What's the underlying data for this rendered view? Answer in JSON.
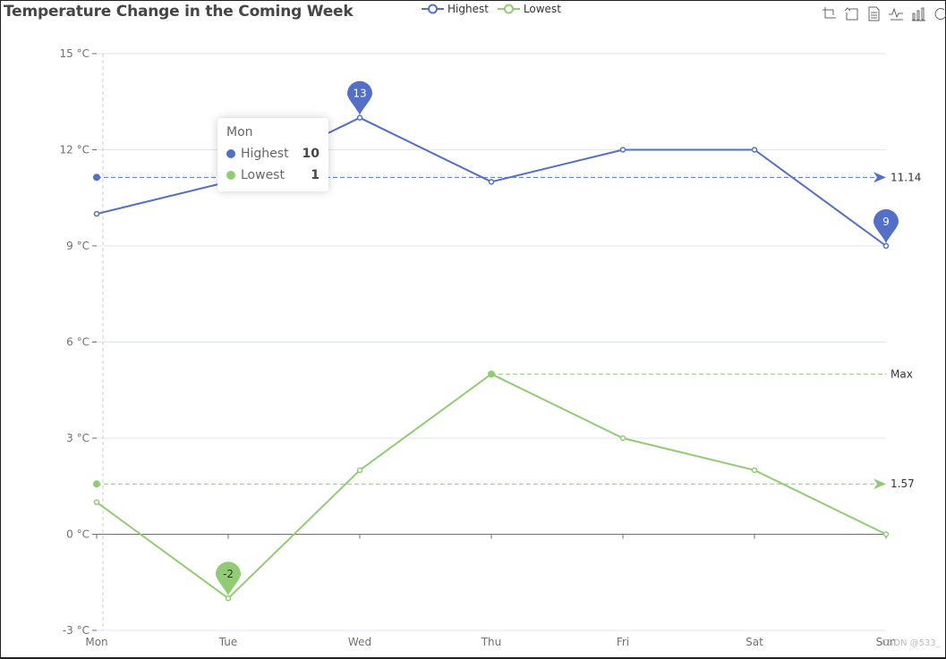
{
  "title": "Temperature Change in the Coming Week",
  "legend": [
    {
      "name": "Highest",
      "color": "#5470c6"
    },
    {
      "name": "Lowest",
      "color": "#91cc75"
    }
  ],
  "toolbox": [
    "data-zoom-icon",
    "zoom-reset-icon",
    "data-view-icon",
    "line-chart-icon",
    "bar-chart-icon",
    "restore-icon"
  ],
  "tooltip": {
    "title": "Mon",
    "rows": [
      {
        "name": "Highest",
        "value": "10",
        "color": "#5470c6"
      },
      {
        "name": "Lowest",
        "value": "1",
        "color": "#91cc75"
      }
    ]
  },
  "watermark": "CSDN @533_",
  "chart_data": {
    "type": "line",
    "title": "Temperature Change in the Coming Week",
    "categories": [
      "Mon",
      "Tue",
      "Wed",
      "Thu",
      "Fri",
      "Sat",
      "Sun"
    ],
    "series": [
      {
        "name": "Highest",
        "color": "#5470c6",
        "values": [
          10,
          11,
          13,
          11,
          12,
          12,
          9
        ],
        "mark_points": [
          {
            "label": "13",
            "type": "max",
            "index": 2
          },
          {
            "label": "9",
            "type": "min",
            "index": 6
          }
        ],
        "mark_lines": [
          {
            "label": "11.14",
            "type": "average",
            "value": 11.14
          }
        ]
      },
      {
        "name": "Lowest",
        "color": "#91cc75",
        "values": [
          1,
          -2,
          2,
          5,
          3,
          2,
          0
        ],
        "mark_points": [
          {
            "label": "-2",
            "type": "min",
            "index": 1
          }
        ],
        "mark_lines": [
          {
            "label": "1.57",
            "type": "average",
            "value": 1.57
          },
          {
            "label": "Max",
            "type": "max",
            "value": 5,
            "from_index": 3
          }
        ]
      }
    ],
    "yticks": [
      "-3 °C",
      "0 °C",
      "3 °C",
      "6 °C",
      "9 °C",
      "12 °C",
      "15 °C"
    ],
    "ytick_values": [
      -3,
      0,
      3,
      6,
      9,
      12,
      15
    ],
    "ylim": [
      -3,
      15
    ],
    "ylabel_format": "{value} °C",
    "xlabel": "",
    "ylabel": "",
    "grid": true,
    "legend_position": "top"
  }
}
